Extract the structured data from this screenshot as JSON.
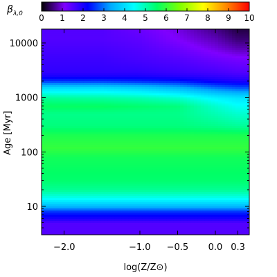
{
  "chart_data": {
    "type": "heatmap",
    "title": "",
    "xlabel": "log(Z/Z⊙)",
    "ylabel": "Age [Myr]",
    "x_scale": "linear",
    "y_scale": "log",
    "xlim": [
      -2.3,
      0.45
    ],
    "ylim": [
      3,
      18000
    ],
    "x_ticks": [
      {
        "value": -2.0,
        "label": "−2.0"
      },
      {
        "value": -1.0,
        "label": "−1.0"
      },
      {
        "value": -0.5,
        "label": "−0.5"
      },
      {
        "value": 0.0,
        "label": "0.0"
      },
      {
        "value": 0.3,
        "label": "0.3"
      }
    ],
    "y_ticks": [
      {
        "value": 10,
        "label": "10"
      },
      {
        "value": 100,
        "label": "100"
      },
      {
        "value": 1000,
        "label": "1000"
      },
      {
        "value": 10000,
        "label": "10000"
      }
    ],
    "colorbar": {
      "label": "β",
      "label_subscript": "λ,0",
      "range": [
        0,
        10
      ],
      "ticks": [
        "0",
        "1",
        "2",
        "3",
        "4",
        "5",
        "6",
        "7",
        "8",
        "9",
        "10"
      ],
      "colormap": "rainbow",
      "colors": [
        "#000000",
        "#7f00ff",
        "#0000ff",
        "#00aaff",
        "#00ffff",
        "#00ff66",
        "#7fff00",
        "#ffff00",
        "#ff8800",
        "#ff0000"
      ]
    },
    "x": [
      -2.3,
      -1.5,
      -1.0,
      -0.5,
      0.0,
      0.3
    ],
    "y": [
      3,
      4,
      5,
      6,
      8,
      10,
      14,
      20,
      30,
      50,
      80,
      120,
      200,
      300,
      500,
      700,
      1000,
      1500,
      2000,
      2500,
      3000,
      5000,
      8000,
      12000,
      18000
    ],
    "z": [
      [
        1.5,
        1.5,
        1.5,
        1.5,
        1.5,
        1.5
      ],
      [
        1.5,
        1.5,
        1.5,
        1.5,
        1.5,
        1.5
      ],
      [
        1.5,
        1.5,
        1.5,
        1.5,
        1.5,
        1.5
      ],
      [
        2.0,
        2.0,
        2.0,
        2.0,
        2.0,
        2.0
      ],
      [
        2.5,
        2.5,
        2.5,
        2.5,
        2.5,
        2.5
      ],
      [
        3.5,
        3.5,
        3.5,
        3.5,
        3.5,
        3.5
      ],
      [
        4.5,
        4.5,
        4.5,
        4.5,
        4.5,
        4.5
      ],
      [
        5.2,
        5.2,
        5.2,
        5.2,
        5.2,
        5.2
      ],
      [
        5.5,
        5.5,
        5.5,
        5.5,
        5.5,
        5.5
      ],
      [
        5.6,
        5.6,
        5.6,
        5.6,
        5.6,
        5.6
      ],
      [
        5.7,
        5.7,
        5.7,
        5.7,
        5.7,
        5.7
      ],
      [
        6.0,
        6.0,
        6.0,
        6.0,
        6.0,
        6.0
      ],
      [
        5.8,
        5.8,
        5.8,
        5.8,
        5.8,
        5.8
      ],
      [
        5.4,
        5.4,
        5.4,
        5.4,
        5.3,
        5.2
      ],
      [
        5.3,
        5.3,
        5.3,
        5.3,
        5.0,
        4.8
      ],
      [
        5.6,
        5.6,
        5.5,
        5.4,
        4.8,
        4.5
      ],
      [
        5.2,
        5.1,
        5.0,
        4.8,
        4.3,
        4.1
      ],
      [
        4.0,
        4.0,
        3.8,
        3.5,
        3.0,
        2.8
      ],
      [
        2.6,
        2.6,
        2.5,
        2.4,
        2.1,
        2.0
      ],
      [
        2.0,
        2.0,
        2.0,
        1.9,
        1.8,
        1.7
      ],
      [
        1.8,
        1.8,
        1.8,
        1.7,
        1.6,
        1.5
      ],
      [
        1.7,
        1.7,
        1.6,
        1.5,
        1.3,
        1.2
      ],
      [
        1.6,
        1.6,
        1.5,
        1.3,
        1.0,
        0.8
      ],
      [
        1.5,
        1.5,
        1.4,
        1.1,
        0.8,
        0.5
      ],
      [
        1.5,
        1.5,
        1.3,
        1.0,
        0.6,
        0.3
      ]
    ]
  }
}
